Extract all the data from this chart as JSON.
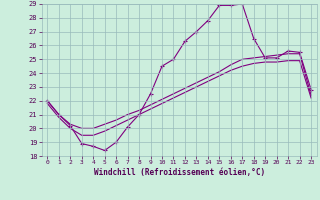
{
  "line1_x": [
    0,
    1,
    2,
    3,
    4,
    5,
    6,
    7,
    8,
    9,
    10,
    11,
    12,
    13,
    14,
    15,
    16,
    17,
    18,
    19,
    20,
    21,
    22,
    23
  ],
  "line1_y": [
    22.0,
    21.0,
    20.2,
    18.9,
    18.7,
    18.4,
    19.0,
    20.1,
    21.0,
    22.5,
    24.5,
    25.0,
    26.3,
    27.0,
    27.8,
    28.9,
    28.9,
    29.0,
    26.5,
    25.1,
    25.1,
    25.6,
    25.5,
    22.8
  ],
  "line2_x": [
    0,
    1,
    2,
    3,
    4,
    5,
    6,
    7,
    8,
    9,
    10,
    11,
    12,
    13,
    14,
    15,
    16,
    17,
    18,
    19,
    20,
    21,
    22,
    23
  ],
  "line2_y": [
    22.0,
    21.0,
    20.3,
    20.0,
    20.0,
    20.3,
    20.6,
    21.0,
    21.3,
    21.7,
    22.1,
    22.5,
    22.9,
    23.3,
    23.7,
    24.1,
    24.6,
    25.0,
    25.1,
    25.2,
    25.3,
    25.4,
    25.4,
    22.4
  ],
  "line3_x": [
    0,
    1,
    2,
    3,
    4,
    5,
    6,
    7,
    8,
    9,
    10,
    11,
    12,
    13,
    14,
    15,
    16,
    17,
    18,
    19,
    20,
    21,
    22,
    23
  ],
  "line3_y": [
    21.8,
    20.8,
    20.0,
    19.5,
    19.5,
    19.8,
    20.2,
    20.6,
    21.0,
    21.4,
    21.8,
    22.2,
    22.6,
    23.0,
    23.4,
    23.8,
    24.2,
    24.5,
    24.7,
    24.8,
    24.8,
    24.9,
    24.9,
    22.2
  ],
  "line_color": "#800080",
  "bg_color": "#cceedd",
  "grid_color": "#99bbbb",
  "text_color": "#550055",
  "xlabel": "Windchill (Refroidissement éolien,°C)",
  "ylim": [
    18,
    29
  ],
  "xlim": [
    -0.5,
    23.5
  ],
  "yticks": [
    18,
    19,
    20,
    21,
    22,
    23,
    24,
    25,
    26,
    27,
    28,
    29
  ],
  "xticks": [
    0,
    1,
    2,
    3,
    4,
    5,
    6,
    7,
    8,
    9,
    10,
    11,
    12,
    13,
    14,
    15,
    16,
    17,
    18,
    19,
    20,
    21,
    22,
    23
  ]
}
